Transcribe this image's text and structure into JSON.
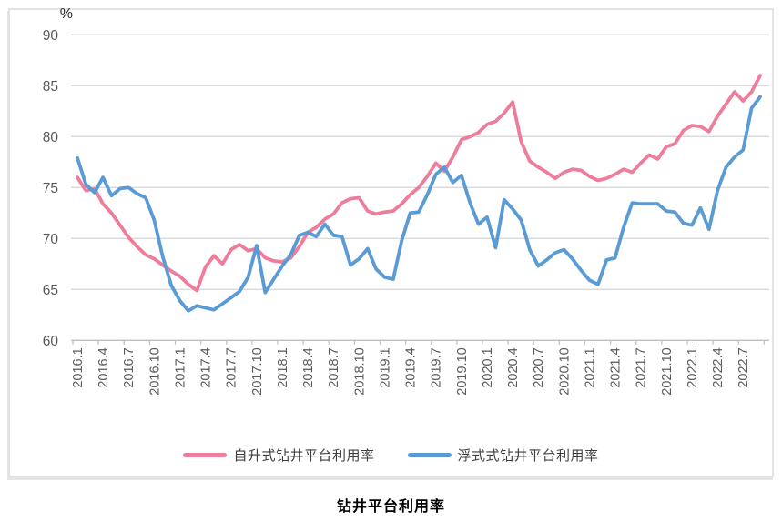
{
  "chart_data": {
    "type": "line",
    "title": "钻井平台利用率",
    "unit_label": "%",
    "grid": true,
    "legend_position": "bottom",
    "ylim": [
      60,
      90
    ],
    "y_ticks": [
      60,
      65,
      70,
      75,
      80,
      85,
      90
    ],
    "x_tick_interval": 3,
    "categories": [
      "2016.1",
      "2016.2",
      "2016.3",
      "2016.4",
      "2016.5",
      "2016.6",
      "2016.7",
      "2016.8",
      "2016.9",
      "2016.10",
      "2016.11",
      "2016.12",
      "2017.1",
      "2017.2",
      "2017.3",
      "2017.4",
      "2017.5",
      "2017.6",
      "2017.7",
      "2017.8",
      "2017.9",
      "2017.10",
      "2017.11",
      "2017.12",
      "2018.1",
      "2018.2",
      "2018.3",
      "2018.4",
      "2018.5",
      "2018.6",
      "2018.7",
      "2018.8",
      "2018.9",
      "2018.10",
      "2018.11",
      "2018.12",
      "2019.1",
      "2019.2",
      "2019.3",
      "2019.4",
      "2019.5",
      "2019.6",
      "2019.7",
      "2019.8",
      "2019.9",
      "2019.10",
      "2019.11",
      "2019.12",
      "2020.1",
      "2020.2",
      "2020.3",
      "2020.4",
      "2020.5",
      "2020.6",
      "2020.7",
      "2020.8",
      "2020.9",
      "2020.10",
      "2020.11",
      "2020.12",
      "2021.1",
      "2021.2",
      "2021.3",
      "2021.4",
      "2021.5",
      "2021.6",
      "2021.7",
      "2021.8",
      "2021.9",
      "2021.10",
      "2021.11",
      "2021.12",
      "2022.1",
      "2022.2",
      "2022.3",
      "2022.4",
      "2022.5",
      "2022.6",
      "2022.7",
      "2022.8",
      "2022.9"
    ],
    "series": [
      {
        "name": "自升式钻井平台利用率",
        "color": "#ee7d9b",
        "values": [
          76.0,
          74.7,
          74.9,
          73.4,
          72.5,
          71.3,
          70.1,
          69.2,
          68.4,
          68.0,
          67.4,
          66.8,
          66.3,
          65.5,
          64.9,
          67.2,
          68.3,
          67.5,
          68.9,
          69.4,
          68.8,
          69.0,
          68.1,
          67.8,
          67.7,
          68.1,
          69.2,
          70.6,
          71.1,
          71.9,
          72.4,
          73.5,
          73.9,
          74.0,
          72.7,
          72.4,
          72.6,
          72.7,
          73.4,
          74.3,
          75.0,
          76.1,
          77.4,
          76.6,
          78.0,
          79.7,
          80.0,
          80.4,
          81.2,
          81.5,
          82.3,
          83.4,
          79.5,
          77.6,
          77.0,
          76.5,
          75.9,
          76.5,
          76.8,
          76.7,
          76.1,
          75.7,
          75.9,
          76.3,
          76.8,
          76.5,
          77.4,
          78.2,
          77.8,
          79.0,
          79.3,
          80.6,
          81.1,
          81.0,
          80.5,
          82.0,
          83.2,
          84.4,
          83.5,
          84.4,
          86.0
        ]
      },
      {
        "name": "浮式式钻井平台利用率",
        "color": "#5b9bd5",
        "values": [
          77.9,
          75.3,
          74.5,
          76.0,
          74.2,
          74.9,
          75.0,
          74.4,
          74.0,
          71.8,
          68.2,
          65.4,
          63.9,
          62.9,
          63.4,
          63.2,
          63.0,
          63.6,
          64.2,
          64.8,
          66.2,
          69.3,
          64.7,
          66.0,
          67.3,
          68.4,
          70.3,
          70.6,
          70.2,
          71.4,
          70.3,
          70.2,
          67.4,
          68.0,
          69.0,
          67.0,
          66.2,
          66.0,
          69.8,
          72.5,
          72.6,
          74.3,
          76.3,
          77.0,
          75.5,
          76.2,
          73.5,
          71.4,
          72.1,
          69.1,
          73.8,
          72.9,
          71.8,
          68.9,
          67.3,
          67.9,
          68.6,
          68.9,
          68.0,
          66.9,
          65.9,
          65.5,
          67.9,
          68.1,
          71.1,
          73.5,
          73.4,
          73.4,
          73.4,
          72.7,
          72.6,
          71.5,
          71.3,
          73.0,
          70.9,
          74.7,
          77.0,
          78.0,
          78.7,
          82.8,
          83.9
        ]
      }
    ],
    "colors": {
      "grid": "#d9d9d9",
      "axis": "#bfbfbf",
      "tick_label": "#595959",
      "legend_text": "#3f3f3f",
      "title": "#000000"
    }
  }
}
